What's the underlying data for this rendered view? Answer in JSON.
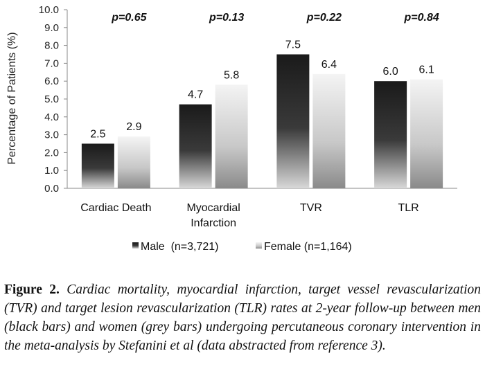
{
  "chart_data": {
    "type": "bar",
    "categories": [
      "Cardiac Death",
      "Myocardial Infarction",
      "TVR",
      "TLR"
    ],
    "category_lines": [
      [
        "Cardiac Death"
      ],
      [
        "Myocardial",
        "Infarction"
      ],
      [
        "TVR"
      ],
      [
        "TLR"
      ]
    ],
    "series": [
      {
        "name": "Male  (n=3,721)",
        "values": [
          2.5,
          4.7,
          7.5,
          6.0
        ],
        "value_labels": [
          "2.5",
          "4.7",
          "7.5",
          "6.0"
        ],
        "color": "#1e1e1e"
      },
      {
        "name": "Female (n=1,164)",
        "values": [
          2.9,
          5.8,
          6.4,
          6.1
        ],
        "value_labels": [
          "2.9",
          "5.8",
          "6.4",
          "6.1"
        ],
        "color": "#d0d0d0"
      }
    ],
    "annotations": [
      "p=0.65",
      "p=0.13",
      "p=0.22",
      "p=0.84"
    ],
    "ylabel": "Percentage of Patients (%)",
    "xlabel": "",
    "ylim": [
      0,
      10
    ],
    "yticks": [
      "0.0",
      "1.0",
      "2.0",
      "3.0",
      "4.0",
      "5.0",
      "6.0",
      "7.0",
      "8.0",
      "9.0",
      "10.0"
    ],
    "grid": false,
    "legend_position": "bottom"
  },
  "caption": {
    "label": "Figure 2.",
    "text": "Cardiac mortality, myocardial infarction, target vessel revascularization (TVR) and target lesion revascularization (TLR) rates at 2-year follow-up between men (black bars) and women (grey bars) undergoing percutaneous coronary intervention in the meta-analysis by Stefanini et al (data abstracted from reference 3)."
  }
}
